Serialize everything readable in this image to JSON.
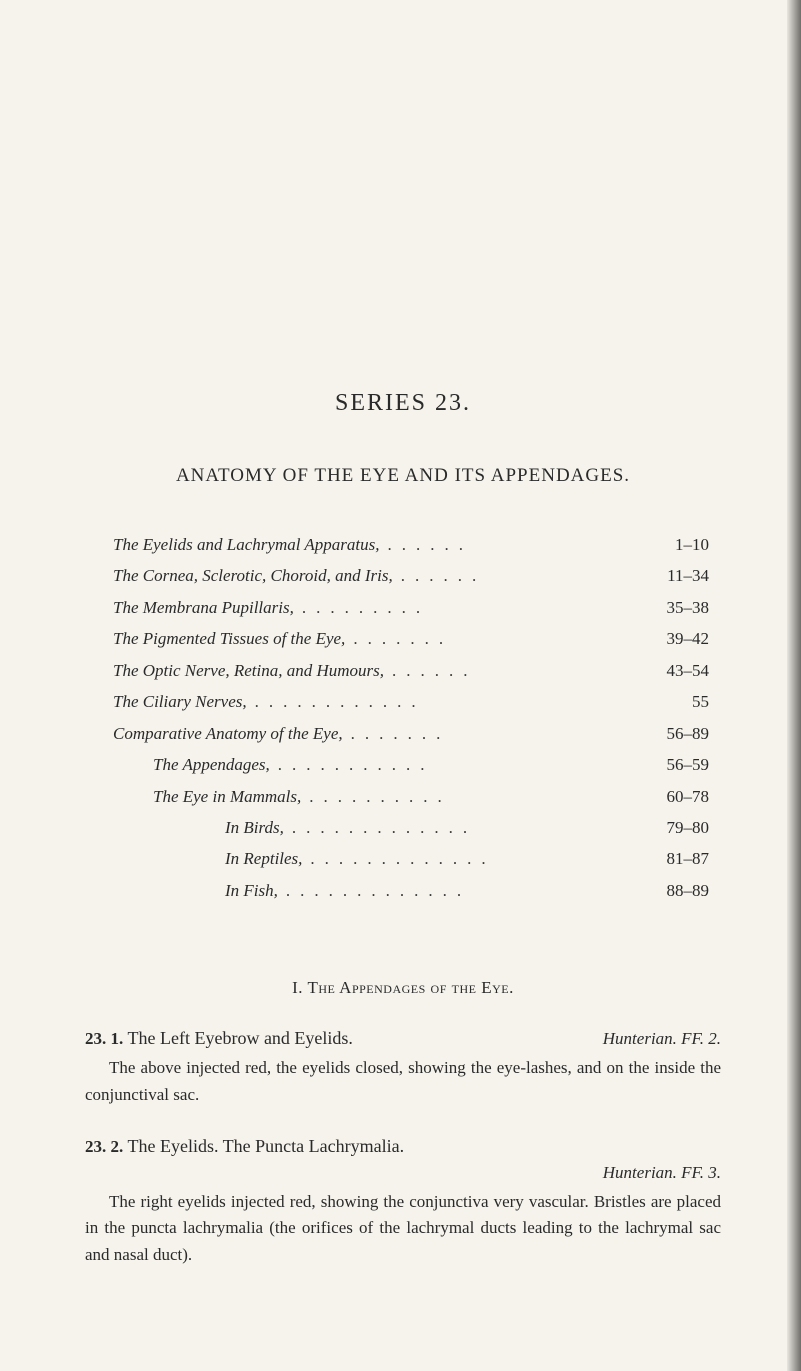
{
  "series_title": "SERIES 23.",
  "main_heading": "ANATOMY OF THE EYE AND ITS APPENDAGES.",
  "toc": [
    {
      "label": "The Eyelids and Lachrymal Apparatus,",
      "page": "1–10",
      "indent": 0
    },
    {
      "label": "The Cornea, Sclerotic, Choroid, and Iris,",
      "page": "11–34",
      "indent": 0
    },
    {
      "label": "The Membrana Pupillaris,",
      "page": "35–38",
      "indent": 0
    },
    {
      "label": "The Pigmented Tissues of the Eye,",
      "page": "39–42",
      "indent": 0
    },
    {
      "label": "The Optic Nerve, Retina, and Humours,",
      "page": "43–54",
      "indent": 0
    },
    {
      "label": "The Ciliary Nerves,",
      "page": "55",
      "indent": 0
    },
    {
      "label": "Comparative Anatomy of the Eye,",
      "page": "56–89",
      "indent": 0
    },
    {
      "label": "The Appendages,",
      "page": "56–59",
      "indent": 1
    },
    {
      "label": "The Eye in Mammals,",
      "page": "60–78",
      "indent": 1
    },
    {
      "label": "In Birds,",
      "page": "79–80",
      "indent": 2
    },
    {
      "label": "In Reptiles,",
      "page": "81–87",
      "indent": 2
    },
    {
      "label": "In Fish,",
      "page": "88–89",
      "indent": 2
    }
  ],
  "section_heading": "I. The Appendages of the Eye.",
  "entries": [
    {
      "num": "23. 1.",
      "title": "The Left Eyebrow and Eyelids.",
      "ref": "Hunterian. FF. 2.",
      "body": "The above injected red, the eyelids closed, showing the eye-lashes, and on the inside the conjunctival sac."
    },
    {
      "num": "23. 2.",
      "title": "The Eyelids. The Puncta Lachrymalia.",
      "ref": "Hunterian. FF. 3.",
      "body": "The right eyelids injected red, showing the conjunctiva very vascular. Bristles are placed in the puncta lachrymalia (the orifices of the lachrymal ducts leading to the lachrymal sac and nasal duct)."
    }
  ],
  "colors": {
    "background": "#f5f3ec",
    "text": "#2a2a2a",
    "edge_shadow": "rgba(0,0,0,0.55)"
  },
  "typography": {
    "body_font": "Times New Roman / serif",
    "series_title_size_pt": 18,
    "heading_size_pt": 14,
    "body_size_pt": 13
  }
}
